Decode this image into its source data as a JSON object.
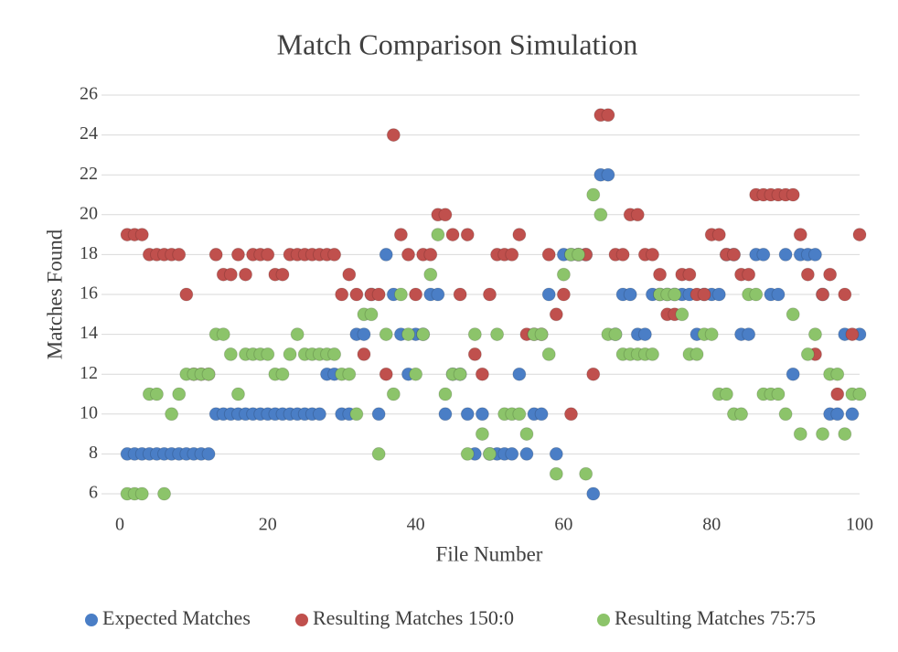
{
  "chart_data": {
    "type": "scatter",
    "title": "Match Comparison Simulation",
    "x_label": "File Number",
    "y_label": "Matches Found",
    "x": [
      1,
      2,
      3,
      4,
      5,
      6,
      7,
      8,
      9,
      10,
      11,
      12,
      13,
      14,
      15,
      16,
      17,
      18,
      19,
      20,
      21,
      22,
      23,
      24,
      25,
      26,
      27,
      28,
      29,
      30,
      31,
      32,
      33,
      34,
      35,
      36,
      37,
      38,
      39,
      40,
      41,
      42,
      43,
      44,
      45,
      46,
      47,
      48,
      49,
      50,
      51,
      52,
      53,
      54,
      55,
      56,
      57,
      58,
      59,
      60,
      61,
      62,
      63,
      64,
      65,
      66,
      67,
      68,
      69,
      70,
      71,
      72,
      73,
      74,
      75,
      76,
      77,
      78,
      79,
      80,
      81,
      82,
      83,
      84,
      85,
      86,
      87,
      88,
      89,
      90,
      91,
      92,
      93,
      94,
      95,
      96,
      97,
      98,
      99,
      100
    ],
    "series": [
      {
        "name": "Expected Matches",
        "color": "#4a7ec6",
        "values": [
          8,
          8,
          8,
          8,
          8,
          8,
          8,
          8,
          8,
          8,
          8,
          8,
          10,
          10,
          10,
          10,
          10,
          10,
          10,
          10,
          10,
          10,
          10,
          10,
          10,
          10,
          10,
          12,
          12,
          10,
          10,
          14,
          14,
          16,
          10,
          18,
          16,
          14,
          12,
          14,
          14,
          16,
          16,
          10,
          12,
          12,
          10,
          8,
          10,
          8,
          8,
          8,
          8,
          12,
          8,
          10,
          10,
          16,
          8,
          18,
          18,
          18,
          18,
          6,
          22,
          22,
          14,
          16,
          16,
          14,
          14,
          16,
          16,
          16,
          16,
          16,
          16,
          14,
          16,
          16,
          16,
          18,
          18,
          14,
          14,
          18,
          18,
          16,
          16,
          18,
          12,
          18,
          18,
          18,
          16,
          10,
          10,
          14,
          10,
          14
        ]
      },
      {
        "name": "Resulting Matches 150:0",
        "color": "#c0504d",
        "values": [
          19,
          19,
          19,
          18,
          18,
          18,
          18,
          18,
          16,
          12,
          12,
          12,
          18,
          17,
          17,
          18,
          17,
          18,
          18,
          18,
          17,
          17,
          18,
          18,
          18,
          18,
          18,
          18,
          18,
          16,
          17,
          16,
          13,
          16,
          16,
          12,
          24,
          19,
          18,
          16,
          18,
          18,
          20,
          20,
          19,
          16,
          19,
          13,
          12,
          16,
          18,
          18,
          18,
          19,
          14,
          14,
          14,
          18,
          15,
          16,
          10,
          18,
          18,
          12,
          25,
          25,
          18,
          18,
          20,
          20,
          18,
          18,
          17,
          15,
          15,
          17,
          17,
          16,
          16,
          19,
          19,
          18,
          18,
          17,
          17,
          21,
          21,
          21,
          21,
          21,
          21,
          19,
          17,
          13,
          16,
          17,
          11,
          16,
          14,
          19
        ]
      },
      {
        "name": "Resulting Matches 75:75",
        "color": "#8cc46a",
        "values": [
          6,
          6,
          6,
          11,
          11,
          6,
          10,
          11,
          12,
          12,
          12,
          12,
          14,
          14,
          13,
          11,
          13,
          13,
          13,
          13,
          12,
          12,
          13,
          14,
          13,
          13,
          13,
          13,
          13,
          12,
          12,
          10,
          15,
          15,
          8,
          14,
          11,
          16,
          14,
          12,
          14,
          17,
          19,
          11,
          12,
          12,
          8,
          14,
          9,
          8,
          14,
          10,
          10,
          10,
          9,
          14,
          14,
          13,
          7,
          17,
          18,
          18,
          7,
          21,
          20,
          14,
          14,
          13,
          13,
          13,
          13,
          13,
          16,
          16,
          16,
          15,
          13,
          13,
          14,
          14,
          11,
          11,
          10,
          10,
          16,
          16,
          11,
          11,
          11,
          10,
          15,
          9,
          13,
          14,
          9,
          12,
          12,
          9,
          11,
          11
        ]
      }
    ],
    "xlim": [
      0,
      100
    ],
    "xticks": [
      0,
      20,
      40,
      60,
      80,
      100
    ],
    "ylim": [
      6,
      26
    ],
    "yticks": [
      6,
      8,
      10,
      12,
      14,
      16,
      18,
      20,
      22,
      24,
      26
    ],
    "grid": true,
    "legend": "bottom"
  }
}
